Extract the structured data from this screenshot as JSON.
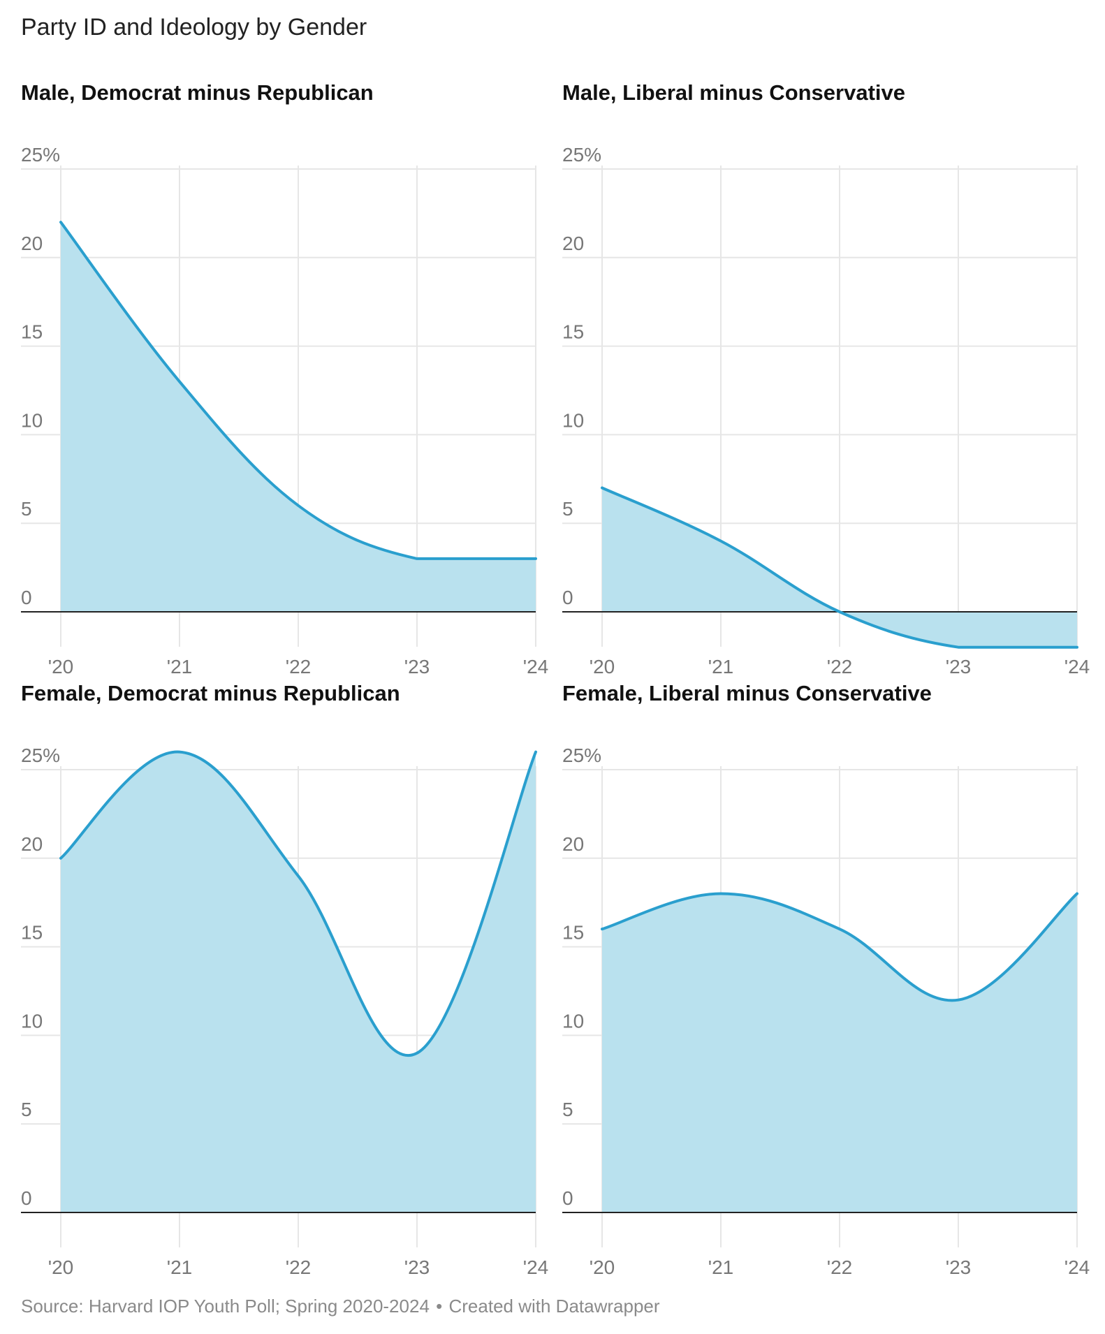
{
  "title": "Party ID and Ideology by Gender",
  "source": "Source: Harvard IOP Youth Poll; Spring 2020-2024",
  "separator": "•",
  "credit": "Created with Datawrapper",
  "colors": {
    "line": "#2a9fce",
    "fill": "#b9e1ee",
    "grid": "#e6e6e6",
    "baseline": "#222222",
    "tick_text": "#777777"
  },
  "chart_data": [
    {
      "type": "area",
      "title": "Male, Democrat minus Republican",
      "x": [
        "'20",
        "'21",
        "'22",
        "'23",
        "'24"
      ],
      "y_ticks": [
        "25%",
        "20",
        "15",
        "10",
        "5",
        "0"
      ],
      "ylim": [
        -2,
        25
      ],
      "values": [
        22,
        13,
        6,
        3,
        3
      ],
      "grid": true
    },
    {
      "type": "area",
      "title": "Male, Liberal minus Conservative",
      "x": [
        "'20",
        "'21",
        "'22",
        "'23",
        "'24"
      ],
      "y_ticks": [
        "25%",
        "20",
        "15",
        "10",
        "5",
        "0"
      ],
      "ylim": [
        -2,
        25
      ],
      "values": [
        7,
        4,
        0,
        -2,
        -2
      ],
      "grid": true
    },
    {
      "type": "area",
      "title": "Female, Democrat minus Republican",
      "x": [
        "'20",
        "'21",
        "'22",
        "'23",
        "'24"
      ],
      "y_ticks": [
        "25%",
        "20",
        "15",
        "10",
        "5",
        "0"
      ],
      "ylim": [
        -2,
        25
      ],
      "values": [
        20,
        26,
        19,
        9,
        26
      ],
      "grid": true
    },
    {
      "type": "area",
      "title": "Female, Liberal minus Conservative",
      "x": [
        "'20",
        "'21",
        "'22",
        "'23",
        "'24"
      ],
      "y_ticks": [
        "25%",
        "20",
        "15",
        "10",
        "5",
        "0"
      ],
      "ylim": [
        -2,
        25
      ],
      "values": [
        16,
        18,
        16,
        12,
        18
      ],
      "grid": true
    }
  ]
}
